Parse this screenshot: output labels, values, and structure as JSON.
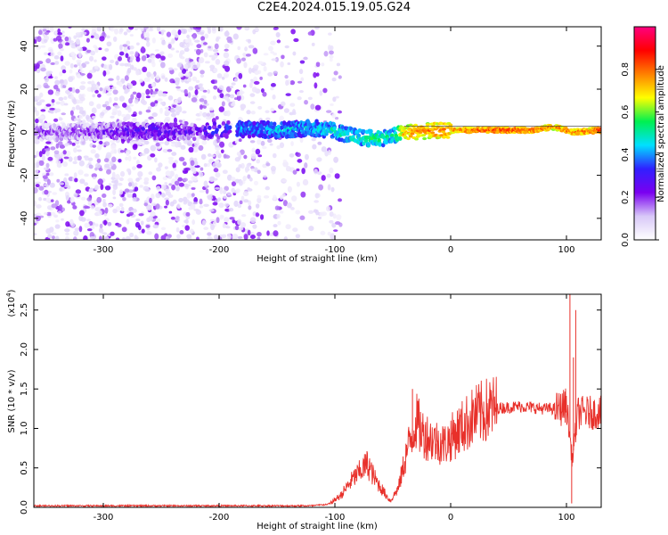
{
  "title": "C2E4.2024.015.19.05.G24",
  "chart_data": [
    {
      "type": "heatmap",
      "xlabel": "Height of straight line (km)",
      "ylabel": "Frequency (Hz)",
      "xlim": [
        -360,
        130
      ],
      "ylim": [
        -50,
        49
      ],
      "x_ticks": [
        -300,
        -200,
        -100,
        0,
        100
      ],
      "y_ticks": [
        -40,
        -20,
        0,
        20,
        40
      ],
      "colorbar": {
        "label": "Normalized spectral amplitude",
        "range": [
          0,
          1
        ],
        "ticks": [
          "0.0",
          "0.2",
          "0.4",
          "0.6",
          "0.8"
        ],
        "colors": [
          "#ffffff",
          "#d8c8f8",
          "#7a00f0",
          "#3020ff",
          "#00e0ff",
          "#00f050",
          "#ffff00",
          "#ff8000",
          "#ff0000",
          "#ff0080"
        ]
      },
      "ridge": [
        {
          "x": -330,
          "freq": 0.0,
          "amp": 0.25
        },
        {
          "x": -290,
          "freq": 0.5,
          "amp": 0.3
        },
        {
          "x": -260,
          "freq": 0.5,
          "amp": 0.35
        },
        {
          "x": -225,
          "freq": 0.0,
          "amp": 0.3
        },
        {
          "x": -185,
          "freq": 1.5,
          "amp": 0.45
        },
        {
          "x": -150,
          "freq": 1.0,
          "amp": 0.5
        },
        {
          "x": -120,
          "freq": 2.0,
          "amp": 0.5
        },
        {
          "x": -100,
          "freq": 0.5,
          "amp": 0.55
        },
        {
          "x": -80,
          "freq": -2.5,
          "amp": 0.55
        },
        {
          "x": -65,
          "freq": -3.0,
          "amp": 0.6
        },
        {
          "x": -50,
          "freq": -2.0,
          "amp": 0.55
        },
        {
          "x": -40,
          "freq": 0.0,
          "amp": 0.8
        },
        {
          "x": -20,
          "freq": 0.5,
          "amp": 0.85
        },
        {
          "x": 0,
          "freq": 1.0,
          "amp": 0.85
        },
        {
          "x": 30,
          "freq": 1.0,
          "amp": 0.9
        },
        {
          "x": 70,
          "freq": 1.0,
          "amp": 0.9
        },
        {
          "x": 90,
          "freq": 2.5,
          "amp": 0.85
        },
        {
          "x": 105,
          "freq": 0.0,
          "amp": 0.85
        },
        {
          "x": 130,
          "freq": 1.0,
          "amp": 0.9
        }
      ]
    },
    {
      "type": "line",
      "xlabel": "Height of straight line (km)",
      "ylabel": "SNR (10 * v/v)",
      "y_scale_label": "(x10",
      "y_scale_exponent": "4",
      "y_scale_close": ")",
      "xlim": [
        -360,
        130
      ],
      "ylim": [
        0,
        2.7
      ],
      "x_ticks": [
        -300,
        -200,
        -100,
        0,
        100
      ],
      "y_ticks": [
        "0.0",
        "0.5",
        "1.0",
        "1.5",
        "2.0",
        "2.5"
      ],
      "color": "#e8302a",
      "envelope": [
        {
          "x": -360,
          "y": 0.02
        },
        {
          "x": -120,
          "y": 0.02
        },
        {
          "x": -105,
          "y": 0.04
        },
        {
          "x": -95,
          "y": 0.15
        },
        {
          "x": -85,
          "y": 0.35
        },
        {
          "x": -72,
          "y": 0.55
        },
        {
          "x": -65,
          "y": 0.35
        },
        {
          "x": -58,
          "y": 0.2
        },
        {
          "x": -52,
          "y": 0.08
        },
        {
          "x": -45,
          "y": 0.25
        },
        {
          "x": -38,
          "y": 0.7
        },
        {
          "x": -30,
          "y": 1.1
        },
        {
          "x": -25,
          "y": 0.95
        },
        {
          "x": -15,
          "y": 0.85
        },
        {
          "x": -5,
          "y": 0.8
        },
        {
          "x": 5,
          "y": 0.95
        },
        {
          "x": 20,
          "y": 1.15
        },
        {
          "x": 35,
          "y": 1.25
        },
        {
          "x": 60,
          "y": 1.28
        },
        {
          "x": 80,
          "y": 1.25
        },
        {
          "x": 95,
          "y": 1.25
        },
        {
          "x": 100,
          "y": 1.3
        },
        {
          "x": 105,
          "y": 0.6
        },
        {
          "x": 110,
          "y": 1.2
        },
        {
          "x": 130,
          "y": 1.2
        }
      ],
      "spikes": [
        {
          "x": 103,
          "y": 2.7
        },
        {
          "x": 106,
          "y": 1.9
        },
        {
          "x": 108,
          "y": 2.5
        },
        {
          "x": 104.5,
          "y": 0.05
        },
        {
          "x": -33,
          "y": 1.5
        },
        {
          "x": -28,
          "y": 1.35
        },
        {
          "x": -70,
          "y": 0.62
        }
      ]
    }
  ]
}
